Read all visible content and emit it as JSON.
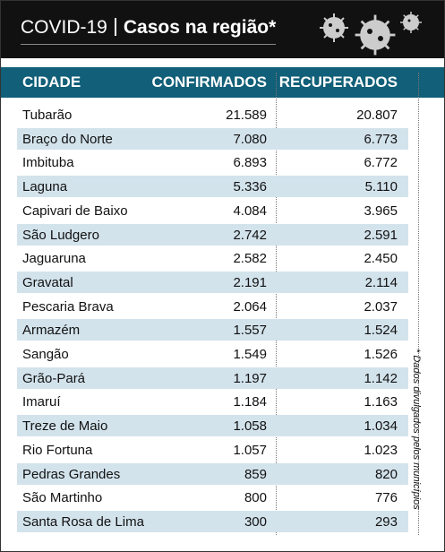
{
  "header": {
    "label": "COVID-19",
    "title": "Casos na região*"
  },
  "table": {
    "columns": [
      "CIDADE",
      "CONFIRMADOS",
      "RECUPERADOS"
    ],
    "rows": [
      [
        "Tubarão",
        "21.589",
        "20.807"
      ],
      [
        "Braço do Norte",
        "7.080",
        "6.773"
      ],
      [
        "Imbituba",
        "6.893",
        "6.772"
      ],
      [
        "Laguna",
        "5.336",
        "5.110"
      ],
      [
        "Capivari de Baixo",
        "4.084",
        "3.965"
      ],
      [
        "São Ludgero",
        "2.742",
        "2.591"
      ],
      [
        "Jaguaruna",
        "2.582",
        "2.450"
      ],
      [
        "Gravatal",
        "2.191",
        "2.114"
      ],
      [
        "Pescaria Brava",
        "2.064",
        "2.037"
      ],
      [
        "Armazém",
        "1.557",
        "1.524"
      ],
      [
        "Sangão",
        "1.549",
        "1.526"
      ],
      [
        "Grão-Pará",
        "1.197",
        "1.142"
      ],
      [
        "Imaruí",
        "1.184",
        "1.163"
      ],
      [
        "Treze de Maio",
        "1.058",
        "1.034"
      ],
      [
        "Rio Fortuna",
        "1.057",
        "1.023"
      ],
      [
        "Pedras Grandes",
        "859",
        "820"
      ],
      [
        "São Martinho",
        "800",
        "776"
      ],
      [
        "Santa Rosa de Lima",
        "300",
        "293"
      ]
    ]
  },
  "footnote": "* Dados divulgados pelos municípios"
}
